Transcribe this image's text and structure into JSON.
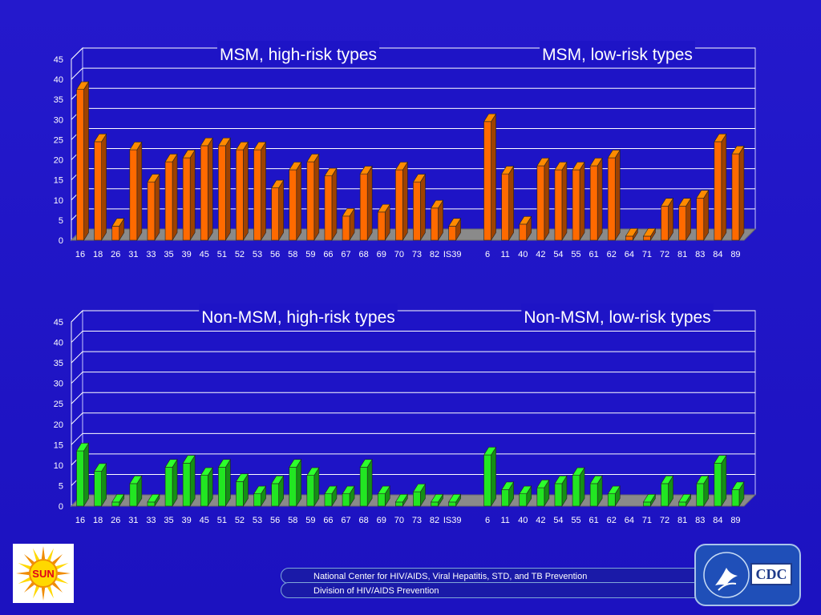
{
  "chart_data": [
    {
      "type": "bar",
      "ylim": [
        0,
        45
      ],
      "yticks": [
        0,
        5,
        10,
        15,
        20,
        25,
        30,
        35,
        40,
        45
      ],
      "bar_color": "#ff6a00",
      "panels": [
        {
          "title": "MSM, high-risk types",
          "categories": [
            "16",
            "18",
            "26",
            "31",
            "33",
            "35",
            "39",
            "45",
            "51",
            "52",
            "53",
            "56",
            "58",
            "59",
            "66",
            "67",
            "68",
            "69",
            "70",
            "73",
            "82",
            "IS39"
          ],
          "values": [
            37.5,
            24.5,
            3.5,
            22.5,
            14.5,
            19.5,
            20.5,
            23.5,
            23.5,
            22.5,
            22.5,
            13,
            17.5,
            19.5,
            16,
            6,
            16.5,
            7,
            17.5,
            14.5,
            8,
            3.5
          ]
        },
        {
          "title": "MSM, low-risk types",
          "categories": [
            "6",
            "11",
            "40",
            "42",
            "54",
            "55",
            "61",
            "62",
            "64",
            "71",
            "72",
            "81",
            "83",
            "84",
            "89"
          ],
          "values": [
            29.5,
            16.5,
            4,
            18.5,
            17.5,
            17.5,
            18.5,
            20.5,
            1,
            1,
            8.5,
            8.5,
            10.5,
            24.5,
            21.5
          ]
        }
      ]
    },
    {
      "type": "bar",
      "ylim": [
        0,
        45
      ],
      "yticks": [
        0,
        5,
        10,
        15,
        20,
        25,
        30,
        35,
        40,
        45
      ],
      "bar_color": "#22e622",
      "panels": [
        {
          "title": "Non-MSM, high-risk types",
          "categories": [
            "16",
            "18",
            "26",
            "31",
            "33",
            "35",
            "39",
            "45",
            "51",
            "52",
            "53",
            "56",
            "58",
            "59",
            "66",
            "67",
            "68",
            "69",
            "70",
            "73",
            "82",
            "IS39"
          ],
          "values": [
            13.5,
            8.5,
            1,
            5.5,
            1,
            9.5,
            10.5,
            7.5,
            9.5,
            6,
            3,
            5.5,
            9.5,
            7.5,
            3,
            3,
            9.5,
            3,
            1,
            3.5,
            1,
            1
          ]
        },
        {
          "title": "Non-MSM, low-risk types",
          "categories": [
            "6",
            "11",
            "40",
            "42",
            "54",
            "55",
            "61",
            "62",
            "64",
            "71",
            "72",
            "81",
            "83",
            "84",
            "89"
          ],
          "values": [
            12.5,
            4,
            3,
            4.5,
            5.5,
            7.5,
            5.5,
            3,
            0,
            1,
            5.5,
            1,
            5.5,
            10.5,
            4
          ]
        }
      ]
    }
  ],
  "logos": {
    "sun_text": "SUN",
    "cdc_text": "CDC"
  },
  "footer": {
    "line1": "National Center for HIV/AIDS, Viral Hepatitis, STD, and TB Prevention",
    "line2": "Division of HIV/AIDS Prevention"
  }
}
